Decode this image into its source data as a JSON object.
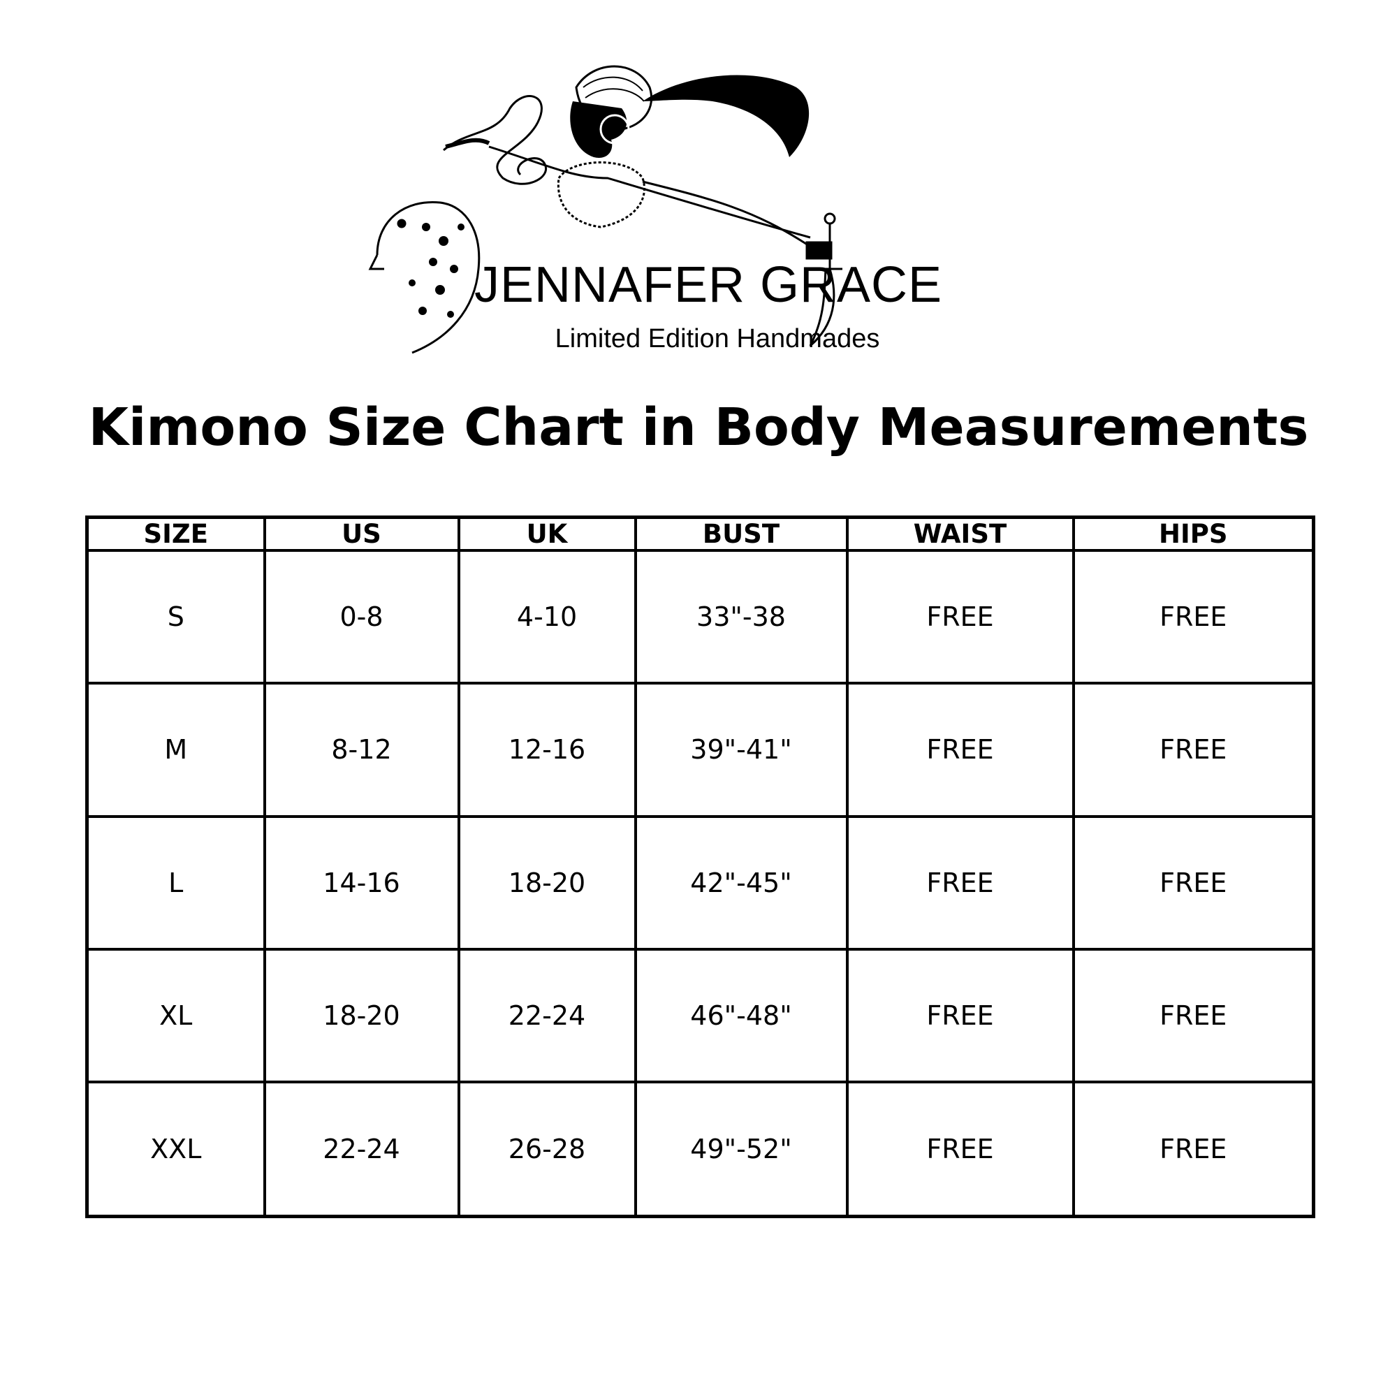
{
  "logo": {
    "brand_name": "JENNAFER GRACE",
    "tagline": "Limited Edition Handmades"
  },
  "title": "Kimono Size Chart in Body Measurements",
  "table": {
    "headers": [
      "SIZE",
      "US",
      "UK",
      "BUST",
      "WAIST",
      "HIPS"
    ],
    "rows": [
      [
        "S",
        "0-8",
        "4-10",
        "33\"-38",
        "FREE",
        "FREE"
      ],
      [
        "M",
        "8-12",
        "12-16",
        "39\"-41\"",
        "FREE",
        "FREE"
      ],
      [
        "L",
        "14-16",
        "18-20",
        "42\"-45\"",
        "FREE",
        "FREE"
      ],
      [
        "XL",
        "18-20",
        "22-24",
        "46\"-48\"",
        "FREE",
        "FREE"
      ],
      [
        "XXL",
        "22-24",
        "26-28",
        "49\"-52\"",
        "FREE",
        "FREE"
      ]
    ]
  }
}
